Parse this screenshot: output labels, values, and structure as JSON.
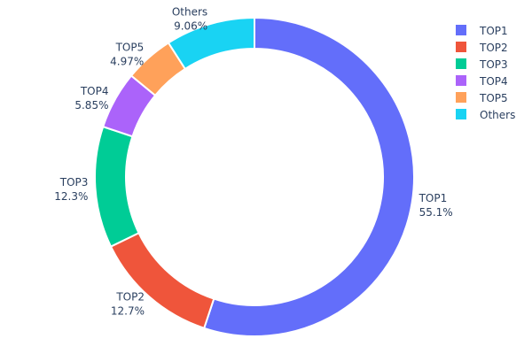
{
  "chart_data": {
    "type": "pie",
    "hole": true,
    "categories": [
      "TOP1",
      "TOP2",
      "TOP3",
      "TOP4",
      "TOP5",
      "Others"
    ],
    "values": [
      55.1,
      12.7,
      12.3,
      5.85,
      4.97,
      9.06
    ],
    "value_labels": [
      "55.1%",
      "12.7%",
      "12.3%",
      "5.85%",
      "4.97%",
      "9.06%"
    ],
    "colors": [
      "#636efa",
      "#EF553B",
      "#00cc96",
      "#ab63fa",
      "#FFA15A",
      "#19d3f3"
    ],
    "direction": "clockwise",
    "start": "top",
    "legend": {
      "position": "top-right",
      "entries": [
        "TOP1",
        "TOP2",
        "TOP3",
        "TOP4",
        "TOP5",
        "Others"
      ]
    }
  }
}
